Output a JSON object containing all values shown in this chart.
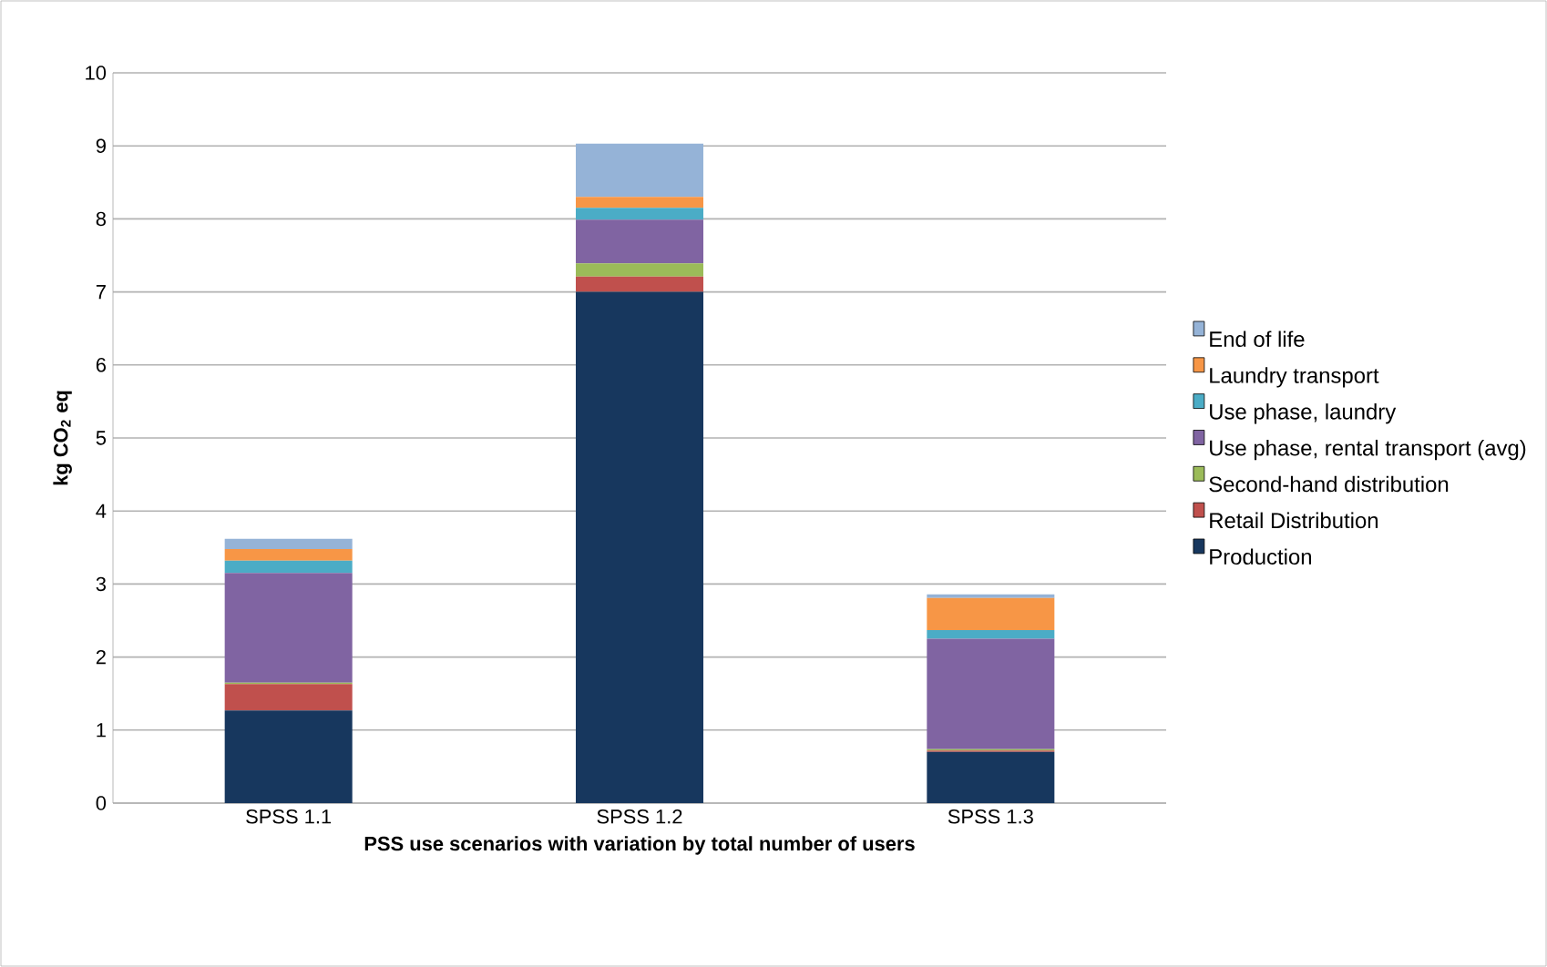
{
  "chart_data": {
    "type": "bar",
    "stacked": true,
    "xlabel": "PSS use scenarios with variation by total number of users",
    "ylabel": "kg CO$_{2}$ eq",
    "categories": [
      "SPSS 1.1",
      "SPSS 1.2",
      "SPSS 1.3"
    ],
    "series": [
      {
        "name": "Production",
        "color": "#17375e",
        "values": [
          1.27,
          7.0,
          0.7
        ]
      },
      {
        "name": "Retail Distribution",
        "color": "#c0504d",
        "values": [
          0.36,
          0.21,
          0.02
        ]
      },
      {
        "name": "Second-hand distribution",
        "color": "#9bbb59",
        "values": [
          0.02,
          0.18,
          0.02
        ]
      },
      {
        "name": "Use phase, rental transport (avg)",
        "color": "#8064a2",
        "values": [
          1.5,
          0.6,
          1.51
        ]
      },
      {
        "name": "Use phase, laundry",
        "color": "#4bacc6",
        "values": [
          0.17,
          0.16,
          0.12
        ]
      },
      {
        "name": "Laundry transport",
        "color": "#f79646",
        "values": [
          0.16,
          0.15,
          0.44
        ]
      },
      {
        "name": "End of life",
        "color": "#95b3d7",
        "values": [
          0.14,
          0.73,
          0.05
        ]
      }
    ],
    "ylim": [
      0,
      10
    ],
    "yticks": [
      0,
      1,
      2,
      3,
      4,
      5,
      6,
      7,
      8,
      9,
      10
    ],
    "grid": "y",
    "legend": "right"
  }
}
